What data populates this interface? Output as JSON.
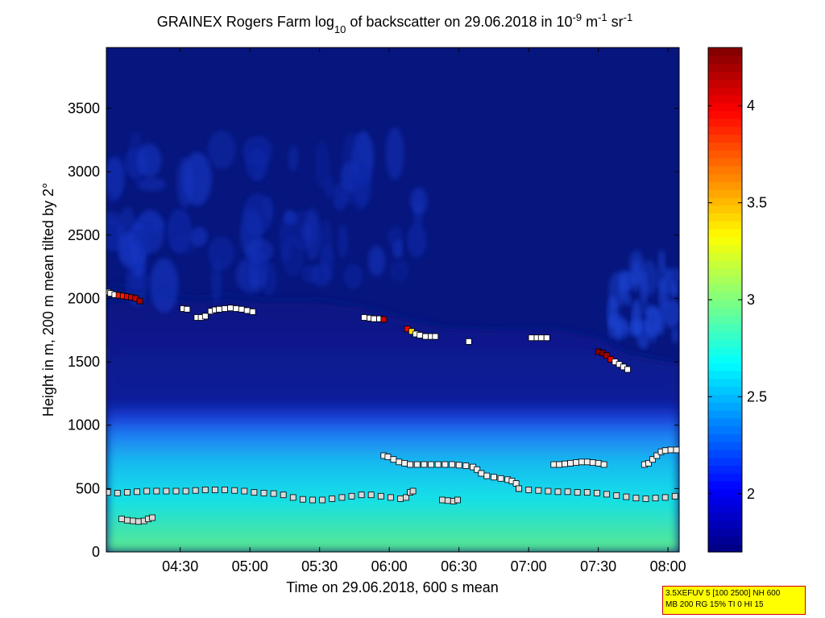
{
  "chart_data": {
    "type": "heatmap",
    "title": {
      "part1": "GRAINEX Rogers Farm log",
      "sub": "10",
      "part2": " of backscatter on 29.06.2018 in 10",
      "sup1": "-9",
      "part3": " m",
      "sup2": "-1",
      "part4": " sr",
      "sup3": "-1"
    },
    "xlabel": "Time on 29.06.2018, 600 s mean",
    "ylabel": "Height in m, 200 m mean tilted by 2°",
    "x_range_hours": [
      3.97,
      8.08
    ],
    "x_ticks": [
      {
        "h": 4.5,
        "label": "04:30"
      },
      {
        "h": 5.0,
        "label": "05:00"
      },
      {
        "h": 5.5,
        "label": "05:30"
      },
      {
        "h": 6.0,
        "label": "06:00"
      },
      {
        "h": 6.5,
        "label": "06:30"
      },
      {
        "h": 7.0,
        "label": "07:00"
      },
      {
        "h": 7.5,
        "label": "07:30"
      },
      {
        "h": 8.0,
        "label": "08:00"
      }
    ],
    "ylim": [
      0,
      3980
    ],
    "y_ticks": [
      0,
      500,
      1000,
      1500,
      2000,
      2500,
      3000,
      3500
    ],
    "colorbar": {
      "range": [
        1.7,
        4.3
      ],
      "ticks": [
        2,
        2.5,
        3,
        3.5,
        4
      ],
      "tick_labels": [
        "2",
        "2.5",
        "3",
        "3.5",
        "4"
      ]
    },
    "boundary_layer_top_m": [
      [
        3.97,
        2050
      ],
      [
        4.3,
        2000
      ],
      [
        4.6,
        1930
      ],
      [
        4.85,
        1960
      ],
      [
        5.1,
        1920
      ],
      [
        5.5,
        1920
      ],
      [
        5.8,
        1870
      ],
      [
        6.1,
        1780
      ],
      [
        6.4,
        1700
      ],
      [
        6.8,
        1690
      ],
      [
        7.2,
        1690
      ],
      [
        7.5,
        1620
      ],
      [
        7.7,
        1500
      ],
      [
        8.08,
        1420
      ]
    ],
    "series": [
      {
        "name": "upper layer",
        "points": [
          [
            3.98,
            2050
          ],
          [
            4.0,
            2040
          ],
          [
            4.03,
            2030
          ],
          [
            4.06,
            2025
          ],
          [
            4.09,
            2020
          ],
          [
            4.12,
            2015
          ],
          [
            4.15,
            2010
          ],
          [
            4.18,
            2000
          ],
          [
            4.21,
            1980
          ],
          [
            4.52,
            1920
          ],
          [
            4.55,
            1915
          ],
          [
            4.62,
            1850
          ],
          [
            4.65,
            1850
          ],
          [
            4.68,
            1860
          ],
          [
            4.72,
            1900
          ],
          [
            4.75,
            1910
          ],
          [
            4.78,
            1915
          ],
          [
            4.82,
            1920
          ],
          [
            4.86,
            1925
          ],
          [
            4.9,
            1920
          ],
          [
            4.94,
            1915
          ],
          [
            4.98,
            1905
          ],
          [
            5.02,
            1895
          ],
          [
            5.82,
            1850
          ],
          [
            5.86,
            1845
          ],
          [
            5.89,
            1840
          ],
          [
            5.93,
            1840
          ],
          [
            5.96,
            1835
          ],
          [
            6.13,
            1760
          ],
          [
            6.16,
            1740
          ],
          [
            6.19,
            1720
          ],
          [
            6.22,
            1710
          ],
          [
            6.26,
            1700
          ],
          [
            6.3,
            1700
          ],
          [
            6.33,
            1700
          ],
          [
            6.57,
            1660
          ],
          [
            7.02,
            1690
          ],
          [
            7.06,
            1690
          ],
          [
            7.09,
            1690
          ],
          [
            7.13,
            1690
          ],
          [
            7.5,
            1580
          ],
          [
            7.53,
            1570
          ],
          [
            7.56,
            1550
          ],
          [
            7.59,
            1520
          ],
          [
            7.62,
            1500
          ],
          [
            7.65,
            1480
          ],
          [
            7.68,
            1460
          ],
          [
            7.71,
            1440
          ]
        ],
        "values": [
          2.6,
          2.6,
          2.6,
          3.9,
          3.9,
          4.0,
          4.1,
          4.1,
          4.2,
          2.5,
          2.5,
          2.5,
          2.5,
          2.5,
          2.5,
          2.5,
          2.5,
          2.5,
          2.5,
          2.5,
          2.5,
          2.5,
          2.5,
          2.5,
          2.5,
          2.6,
          2.6,
          4.1,
          4.0,
          3.4,
          2.5,
          2.5,
          2.5,
          2.5,
          2.5,
          2.5,
          2.5,
          2.5,
          2.5,
          2.5,
          4.3,
          4.3,
          4.2,
          4.0,
          2.5,
          2.5,
          2.5,
          2.5
        ]
      },
      {
        "name": "middle layer",
        "points": [
          [
            5.96,
            760
          ],
          [
            5.99,
            750
          ],
          [
            6.03,
            730
          ],
          [
            6.07,
            710
          ],
          [
            6.11,
            700
          ],
          [
            6.15,
            690
          ],
          [
            6.2,
            690
          ],
          [
            6.25,
            690
          ],
          [
            6.3,
            690
          ],
          [
            6.35,
            690
          ],
          [
            6.4,
            690
          ],
          [
            6.45,
            690
          ],
          [
            6.5,
            685
          ],
          [
            6.55,
            680
          ],
          [
            6.6,
            670
          ],
          [
            6.63,
            650
          ],
          [
            6.66,
            620
          ],
          [
            6.7,
            600
          ],
          [
            6.75,
            590
          ],
          [
            6.8,
            580
          ],
          [
            6.85,
            570
          ],
          [
            6.88,
            560
          ],
          [
            6.91,
            540
          ],
          [
            6.93,
            500
          ],
          [
            7.18,
            690
          ],
          [
            7.22,
            690
          ],
          [
            7.26,
            695
          ],
          [
            7.3,
            700
          ],
          [
            7.34,
            705
          ],
          [
            7.38,
            710
          ],
          [
            7.42,
            710
          ],
          [
            7.46,
            705
          ],
          [
            7.5,
            700
          ],
          [
            7.54,
            690
          ],
          [
            7.83,
            690
          ],
          [
            7.86,
            700
          ],
          [
            7.89,
            730
          ],
          [
            7.92,
            760
          ],
          [
            7.95,
            790
          ],
          [
            7.98,
            800
          ],
          [
            8.02,
            805
          ],
          [
            8.06,
            805
          ]
        ],
        "values": [
          2.4,
          2.4,
          2.4,
          2.4,
          2.4,
          2.4,
          2.4,
          2.4,
          2.4,
          2.4,
          2.4,
          2.4,
          2.4,
          2.4,
          2.4,
          2.4,
          2.4,
          2.4,
          2.4,
          2.4,
          2.4,
          2.4,
          2.4,
          2.5,
          2.4,
          2.4,
          2.4,
          2.4,
          2.4,
          2.4,
          2.4,
          2.4,
          2.4,
          2.5,
          2.4,
          2.4,
          2.4,
          2.5,
          2.5,
          2.5,
          2.5,
          2.5
        ]
      },
      {
        "name": "lower layer",
        "points": [
          [
            3.98,
            470
          ],
          [
            4.05,
            465
          ],
          [
            4.12,
            470
          ],
          [
            4.19,
            475
          ],
          [
            4.26,
            480
          ],
          [
            4.33,
            480
          ],
          [
            4.4,
            480
          ],
          [
            4.47,
            480
          ],
          [
            4.54,
            480
          ],
          [
            4.61,
            485
          ],
          [
            4.68,
            490
          ],
          [
            4.75,
            490
          ],
          [
            4.82,
            490
          ],
          [
            4.89,
            485
          ],
          [
            4.96,
            480
          ],
          [
            5.03,
            470
          ],
          [
            5.1,
            465
          ],
          [
            5.17,
            460
          ],
          [
            5.24,
            450
          ],
          [
            5.31,
            430
          ],
          [
            5.38,
            415
          ],
          [
            5.45,
            410
          ],
          [
            5.52,
            410
          ],
          [
            5.59,
            420
          ],
          [
            5.66,
            430
          ],
          [
            5.73,
            440
          ],
          [
            5.8,
            450
          ],
          [
            5.87,
            450
          ],
          [
            5.94,
            440
          ],
          [
            6.01,
            430
          ],
          [
            6.08,
            420
          ],
          [
            6.12,
            430
          ],
          [
            6.15,
            470
          ],
          [
            6.17,
            480
          ],
          [
            6.38,
            410
          ],
          [
            6.42,
            405
          ],
          [
            6.46,
            400
          ],
          [
            6.49,
            410
          ],
          [
            6.93,
            500
          ],
          [
            7.0,
            490
          ],
          [
            7.07,
            485
          ],
          [
            7.14,
            480
          ],
          [
            7.21,
            475
          ],
          [
            7.28,
            475
          ],
          [
            7.35,
            470
          ],
          [
            7.42,
            470
          ],
          [
            7.49,
            465
          ],
          [
            7.56,
            455
          ],
          [
            7.63,
            445
          ],
          [
            7.7,
            435
          ],
          [
            7.77,
            425
          ],
          [
            7.84,
            420
          ],
          [
            7.91,
            425
          ],
          [
            7.98,
            430
          ],
          [
            8.05,
            440
          ],
          [
            4.08,
            260
          ],
          [
            4.12,
            250
          ],
          [
            4.16,
            245
          ],
          [
            4.2,
            240
          ],
          [
            4.24,
            245
          ],
          [
            4.27,
            260
          ],
          [
            4.3,
            270
          ]
        ],
        "values": [
          2.3,
          2.3,
          2.3,
          2.3,
          2.3,
          2.3,
          2.3,
          2.3,
          2.3,
          2.3,
          2.3,
          2.3,
          2.3,
          2.3,
          2.3,
          2.3,
          2.3,
          2.3,
          2.3,
          2.3,
          2.3,
          2.3,
          2.3,
          2.3,
          2.3,
          2.3,
          2.3,
          2.3,
          2.3,
          2.3,
          2.3,
          2.3,
          2.4,
          2.5,
          2.3,
          2.3,
          2.3,
          2.6,
          2.3,
          2.3,
          2.3,
          2.3,
          2.3,
          2.3,
          2.3,
          2.3,
          2.3,
          2.3,
          2.3,
          2.3,
          2.3,
          2.3,
          2.3,
          2.3,
          2.4,
          2.3,
          2.3,
          2.3,
          2.3,
          2.3,
          2.4,
          2.6
        ]
      }
    ]
  },
  "info_box": {
    "line1": "3.5XEFUV 5 [100 2500] NH 600",
    "line2": "MB 200 RG 15% TI 0 HI 15"
  }
}
